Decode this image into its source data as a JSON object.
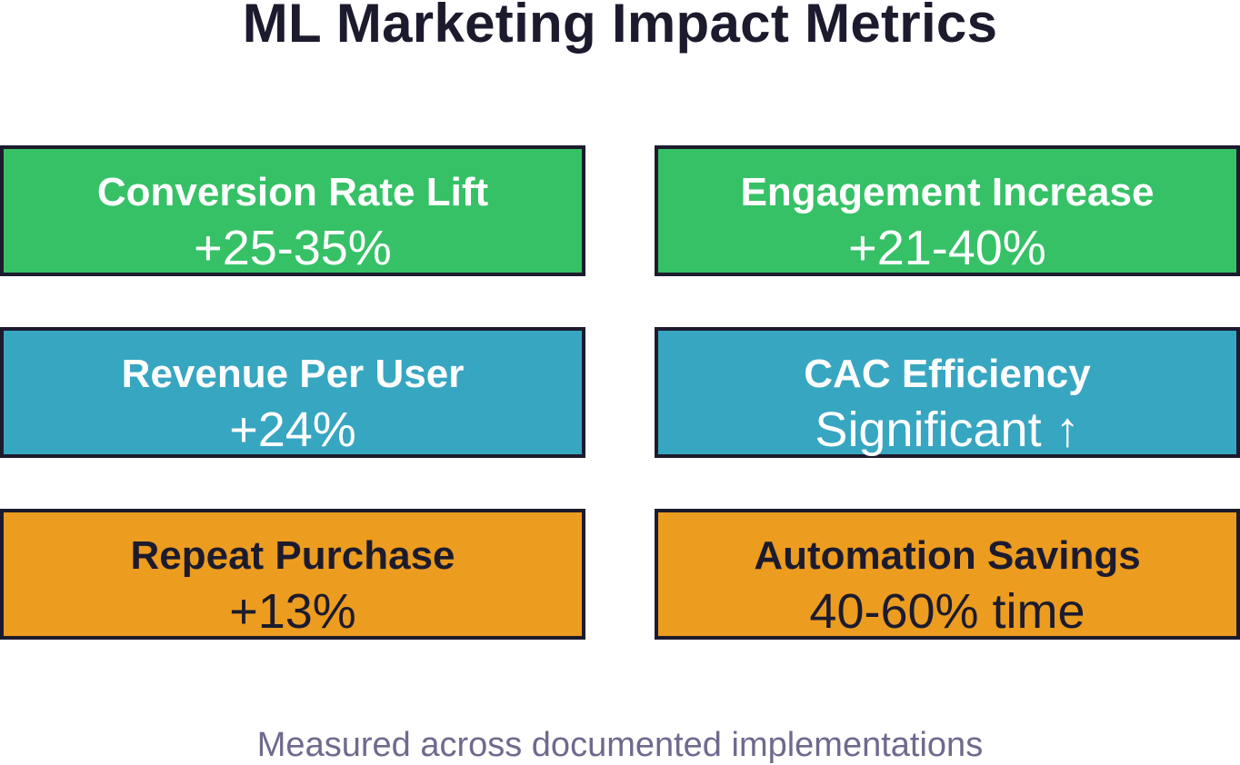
{
  "title": "ML Marketing Impact Metrics",
  "colors": {
    "green": "#36c166",
    "blue": "#37a6c1",
    "orange": "#ec9c1f",
    "border": "#1c1b2e",
    "footer_text": "#6e6a8e"
  },
  "metrics": [
    {
      "label": "Conversion Rate Lift",
      "value": "+25-35%",
      "color": "green"
    },
    {
      "label": "Engagement Increase",
      "value": "+21-40%",
      "color": "green"
    },
    {
      "label": "Revenue Per User",
      "value": "+24%",
      "color": "blue"
    },
    {
      "label": "CAC Efficiency",
      "value": "Significant ↑",
      "color": "blue"
    },
    {
      "label": "Repeat Purchase",
      "value": "+13%",
      "color": "orange"
    },
    {
      "label": "Automation Savings",
      "value": "40-60% time",
      "color": "orange"
    }
  ],
  "footer": "Measured across documented implementations"
}
